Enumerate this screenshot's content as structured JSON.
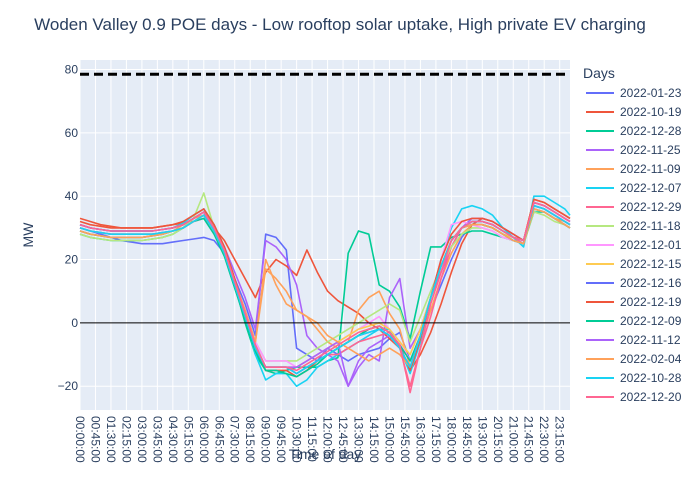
{
  "chart_data": {
    "type": "line",
    "title": "Woden Valley 0.9 POE days - Low rooftop solar uptake, High private EV charging",
    "xlabel": "Time of day",
    "ylabel": "MW",
    "ylim": [
      -27.5,
      83
    ],
    "y_ticks": [
      -20,
      0,
      20,
      40,
      60,
      80
    ],
    "y_tick_labels": [
      "−20",
      "0",
      "20",
      "40",
      "60",
      "80"
    ],
    "x_tick_labels": [
      "00:00:00",
      "00:45:00",
      "01:30:00",
      "02:15:00",
      "03:00:00",
      "03:45:00",
      "04:30:00",
      "05:15:00",
      "06:00:00",
      "06:45:00",
      "07:30:00",
      "08:15:00",
      "09:00:00",
      "09:45:00",
      "10:30:00",
      "11:15:00",
      "12:00:00",
      "12:45:00",
      "13:30:00",
      "14:15:00",
      "15:00:00",
      "15:45:00",
      "16:30:00",
      "17:15:00",
      "18:00:00",
      "18:45:00",
      "19:30:00",
      "20:15:00",
      "21:00:00",
      "21:45:00",
      "22:30:00",
      "23:15:00"
    ],
    "x_range_hours": [
      0,
      23.75
    ],
    "grid": true,
    "legend_title": "Days",
    "legend_position": "right",
    "reference_line": {
      "value": 78.5,
      "style": "dashed",
      "color": "#000000"
    },
    "zero_line": true,
    "x_hours": [
      0,
      0.5,
      1,
      1.5,
      2,
      2.5,
      3,
      3.5,
      4,
      4.5,
      5,
      5.5,
      6,
      6.5,
      7,
      7.5,
      8,
      8.5,
      9,
      9.5,
      10,
      10.5,
      11,
      11.5,
      12,
      12.5,
      13,
      13.5,
      14,
      14.5,
      15,
      15.5,
      16,
      16.5,
      17,
      17.5,
      18,
      18.5,
      19,
      19.5,
      20,
      20.5,
      21,
      21.5,
      22,
      22.5,
      23,
      23.5,
      23.75
    ],
    "series": [
      {
        "name": "2022-01-23",
        "color": "#636efa",
        "values": [
          30,
          29,
          28,
          27,
          26,
          25.5,
          25,
          25,
          25,
          25.5,
          26,
          26.5,
          27,
          26,
          22,
          14,
          6,
          -4,
          28,
          27,
          23,
          -8,
          -10,
          -12,
          -8,
          -10,
          -12,
          -10,
          -9,
          -8,
          -5,
          -3,
          -12,
          -4,
          4,
          12,
          20,
          27,
          31,
          31,
          30,
          28,
          26,
          25,
          37,
          36,
          34,
          32,
          31
        ]
      },
      {
        "name": "2022-10-19",
        "color": "#ef553b",
        "values": [
          33,
          32,
          31,
          30.5,
          30,
          30,
          30,
          30,
          30.5,
          31,
          31.5,
          32,
          33,
          30,
          26,
          20,
          14,
          8,
          16,
          20,
          18,
          15,
          23,
          16,
          10,
          7,
          5,
          3,
          0,
          -2,
          -5,
          -8,
          -15,
          -10,
          -3,
          6,
          16,
          25,
          31,
          33,
          32,
          30,
          28,
          26,
          39,
          38,
          36,
          34,
          33
        ]
      },
      {
        "name": "2022-12-28",
        "color": "#00cc96",
        "values": [
          28,
          27,
          26.5,
          26,
          26,
          26,
          26,
          26.5,
          27,
          28,
          30,
          33,
          35,
          29,
          22,
          12,
          0,
          -10,
          -15,
          -16,
          -15,
          -14,
          -14,
          -14,
          -12,
          -11,
          22,
          29,
          28,
          12,
          10,
          5,
          -5,
          10,
          24,
          24,
          27,
          28,
          29,
          29,
          28,
          27,
          26,
          25,
          35,
          35,
          33,
          31,
          30
        ]
      },
      {
        "name": "2022-11-25",
        "color": "#ab63fa",
        "values": [
          31,
          30,
          29.5,
          29,
          29,
          29,
          29,
          29,
          29.5,
          30,
          31,
          33,
          35,
          30,
          24,
          16,
          8,
          -2,
          26,
          24,
          20,
          12,
          -4,
          -8,
          -10,
          -12,
          -20,
          -14,
          -10,
          -12,
          8,
          14,
          -8,
          -2,
          8,
          16,
          24,
          30,
          33,
          33,
          32,
          30,
          28,
          26,
          38,
          37,
          35,
          33,
          32
        ]
      },
      {
        "name": "2022-11-09",
        "color": "#ffa15a",
        "values": [
          29,
          28,
          27.5,
          27,
          27,
          27,
          27,
          27.5,
          28,
          29,
          31,
          33,
          34,
          29,
          22,
          13,
          4,
          -6,
          17,
          14,
          10,
          4,
          2,
          -2,
          -6,
          -8,
          -6,
          4,
          8,
          10,
          3,
          -2,
          -14,
          -6,
          4,
          14,
          22,
          28,
          31,
          31,
          30,
          28,
          26,
          25,
          36,
          35,
          33,
          32,
          31
        ]
      },
      {
        "name": "2022-12-07",
        "color": "#19d3f3",
        "values": [
          31,
          30,
          29.5,
          29,
          29,
          29,
          29,
          29,
          29.5,
          30,
          31.5,
          34,
          36,
          31,
          24,
          14,
          2,
          -10,
          -18,
          -16,
          -16,
          -20,
          -18,
          -14,
          -12,
          -10,
          -8,
          -6,
          -4,
          -2,
          -2,
          -8,
          -16,
          -6,
          8,
          20,
          30,
          36,
          37,
          36,
          34,
          30,
          27,
          24,
          40,
          40,
          38,
          36,
          34
        ]
      },
      {
        "name": "2022-12-29",
        "color": "#ff6692",
        "values": [
          30,
          29,
          28.5,
          28,
          28,
          28,
          28,
          28,
          28.5,
          29,
          30,
          32,
          34,
          29,
          22,
          12,
          2,
          -8,
          -14,
          -14,
          -14,
          -16,
          -14,
          -12,
          -10,
          -10,
          -8,
          -6,
          -5,
          -4,
          -3,
          -8,
          -20,
          -8,
          2,
          14,
          24,
          30,
          32,
          32,
          31,
          29,
          27,
          25,
          37,
          36,
          34,
          32,
          31
        ]
      },
      {
        "name": "2022-11-18",
        "color": "#b6e880",
        "values": [
          28,
          27,
          26.5,
          26,
          26,
          26,
          26,
          26.5,
          27,
          28,
          30,
          33,
          41,
          30,
          22,
          12,
          2,
          -6,
          -12,
          -12,
          -12,
          -12,
          -10,
          -8,
          -6,
          -4,
          -2,
          0,
          2,
          4,
          6,
          4,
          -6,
          2,
          10,
          18,
          24,
          28,
          30,
          30,
          29,
          27,
          26,
          25,
          35,
          34,
          32,
          31,
          30
        ]
      },
      {
        "name": "2022-12-01",
        "color": "#ff97ff",
        "values": [
          29,
          28,
          27.5,
          27,
          27,
          27,
          27,
          27.5,
          28,
          29,
          30,
          32,
          33,
          28,
          22,
          13,
          4,
          -6,
          -12,
          -12,
          -12,
          -14,
          -12,
          -10,
          -8,
          -6,
          -4,
          -2,
          0,
          2,
          -2,
          -6,
          -12,
          -4,
          8,
          20,
          31,
          32,
          31,
          30,
          29,
          27,
          26,
          25,
          36,
          35,
          33,
          31,
          30
        ]
      },
      {
        "name": "2022-12-15",
        "color": "#fecb52",
        "values": [
          30,
          29,
          28.5,
          28,
          28,
          28,
          28,
          28,
          28.5,
          29,
          30,
          32,
          34,
          29,
          22,
          12,
          2,
          -8,
          -14,
          -14,
          -14,
          -14,
          -12,
          -10,
          -8,
          -6,
          -4,
          -2,
          -1,
          0,
          -2,
          -6,
          -10,
          -2,
          8,
          18,
          26,
          30,
          31,
          31,
          30,
          28,
          27,
          26,
          37,
          36,
          34,
          32,
          31
        ]
      },
      {
        "name": "2022-12-16",
        "color": "#636efa",
        "values": [
          31,
          30,
          29.5,
          29,
          29,
          29,
          29,
          29,
          29.5,
          30,
          31,
          33,
          35,
          30,
          23,
          13,
          3,
          -7,
          -14,
          -14,
          -14,
          -16,
          -14,
          -12,
          -10,
          -8,
          -6,
          -4,
          -3,
          -2,
          -4,
          -8,
          -14,
          -4,
          8,
          18,
          26,
          30,
          32,
          32,
          31,
          29,
          27,
          26,
          38,
          37,
          35,
          33,
          32
        ]
      },
      {
        "name": "2022-12-19",
        "color": "#ef553b",
        "values": [
          32,
          31,
          30.5,
          30,
          30,
          30,
          30,
          30,
          30.5,
          31,
          32,
          34,
          36,
          31,
          24,
          14,
          3,
          -8,
          -15,
          -15,
          -15,
          -17,
          -15,
          -12,
          -10,
          -8,
          -6,
          -4,
          -2,
          -1,
          -3,
          -7,
          -15,
          -5,
          8,
          20,
          28,
          32,
          33,
          33,
          32,
          30,
          28,
          26,
          39,
          38,
          36,
          34,
          33
        ]
      },
      {
        "name": "2022-12-09",
        "color": "#00cc96",
        "values": [
          29,
          28,
          27.5,
          27,
          27,
          27,
          27,
          27.5,
          28,
          29,
          30,
          32,
          33,
          28,
          21,
          11,
          1,
          -9,
          -15,
          -15,
          -16,
          -17,
          -15,
          -13,
          -10,
          -8,
          -6,
          -4,
          -2,
          -1,
          -3,
          -7,
          -12,
          -4,
          8,
          18,
          26,
          30,
          31,
          31,
          30,
          28,
          26,
          25,
          36,
          35,
          33,
          31,
          30
        ]
      },
      {
        "name": "2022-11-12",
        "color": "#ab63fa",
        "values": [
          30,
          29,
          28.5,
          28,
          28,
          28,
          28,
          28,
          28.5,
          29,
          30,
          32,
          34,
          29,
          22,
          12,
          2,
          -8,
          -14,
          -14,
          -14,
          -14,
          -12,
          -10,
          -8,
          -6,
          -20,
          -12,
          -8,
          -6,
          -4,
          -8,
          -14,
          -4,
          8,
          18,
          26,
          30,
          32,
          32,
          31,
          29,
          27,
          26,
          37,
          36,
          34,
          32,
          31
        ]
      },
      {
        "name": "2022-02-04",
        "color": "#ffa15a",
        "values": [
          29,
          28,
          27.5,
          27,
          27,
          27,
          27,
          27.5,
          28,
          29,
          30,
          32,
          34,
          29,
          22,
          13,
          4,
          -6,
          20,
          12,
          6,
          4,
          2,
          0,
          -4,
          -6,
          -8,
          -10,
          -12,
          -10,
          -8,
          -10,
          -14,
          -4,
          8,
          18,
          26,
          30,
          31,
          31,
          30,
          28,
          26,
          25,
          36,
          35,
          33,
          31,
          30
        ]
      },
      {
        "name": "2022-10-28",
        "color": "#19d3f3",
        "values": [
          30,
          29,
          28.5,
          28,
          28,
          28,
          28,
          28,
          28.5,
          29,
          30,
          32,
          34,
          29,
          22,
          12,
          2,
          -8,
          -14,
          -14,
          -14,
          -16,
          -14,
          -12,
          -10,
          -8,
          -6,
          -4,
          -3,
          -2,
          -4,
          -8,
          -14,
          -4,
          8,
          18,
          26,
          30,
          32,
          32,
          31,
          29,
          27,
          26,
          37,
          36,
          34,
          32,
          31
        ]
      },
      {
        "name": "2022-12-20",
        "color": "#ff6692",
        "values": [
          31,
          30,
          29.5,
          29,
          29,
          29,
          29,
          29,
          29.5,
          30,
          31,
          33,
          35,
          30,
          23,
          13,
          3,
          -7,
          -14,
          -14,
          -14,
          -15,
          -13,
          -11,
          -9,
          -7,
          -5,
          -3,
          -2,
          -1,
          -3,
          -7,
          -22,
          -8,
          6,
          16,
          26,
          30,
          32,
          32,
          31,
          29,
          27,
          26,
          38,
          37,
          35,
          33,
          32
        ]
      }
    ]
  }
}
